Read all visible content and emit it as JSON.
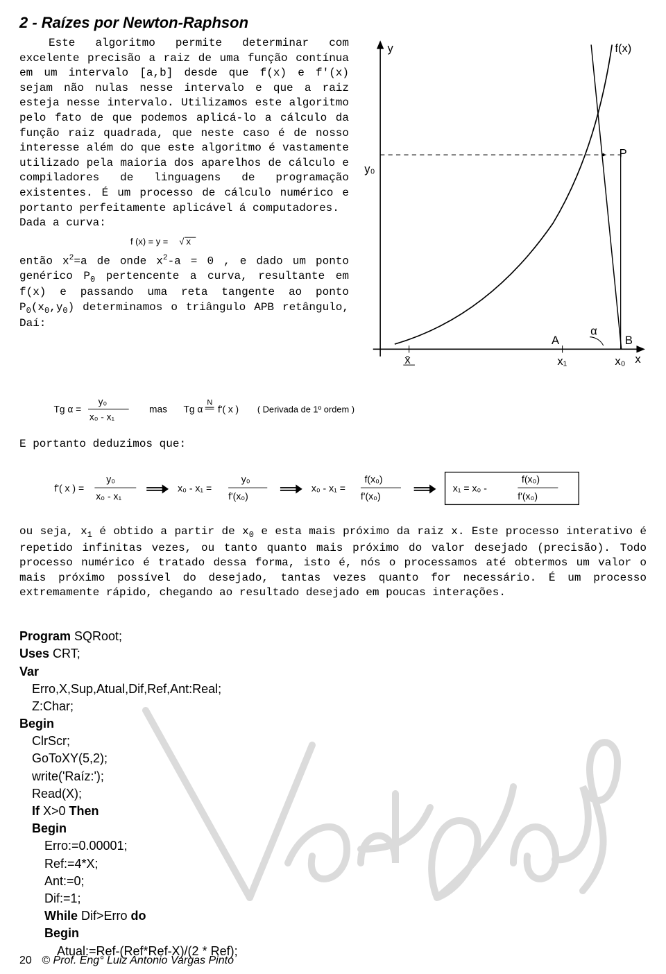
{
  "title": "2 - Raízes por Newton-Raphson",
  "p1": "Este algoritmo permite determinar com excelente precisão a raiz de uma função contínua em um intervalo [a,b] desde que f(x) e f'(x) sejam não nulas nesse intervalo e que a raiz esteja nesse intervalo. Utilizamos este algoritmo pelo fato de que podemos aplicá-lo a cálculo da função raiz quadrada, que neste caso é de nosso interesse além do que este algoritmo é vastamente utilizado pela maioria dos aparelhos de cálculo e compiladores de linguagens de programação existentes. É um processo de cálculo numérico e portanto perfeitamente aplicável á computadores.",
  "given_curve": "Dada a curva:",
  "formula_fx": "f(x) = y = √x",
  "p2_html": "então x<sup>2</sup>=a de onde x<sup>2</sup>-a = 0 , e dado um ponto genérico P<sub>0</sub> pertencente a curva, resultante em f(x) e passando uma reta tangente ao ponto P<sub>0</sub>(x<sub>0</sub>,y<sub>0</sub>) determinamos o triângulo APB retângulo, Daí:",
  "eq_tan": {
    "left_label": "Tg α =",
    "numerator1": "y₀",
    "denominator1": "x₀ - x₁",
    "mas": "mas",
    "tg2": "Tg α",
    "eq_label": "=",
    "n_over": "N",
    "fprime": "f'( x )",
    "paren": "( Derivada de 1º ordem )"
  },
  "p3": "E portanto deduzimos que:",
  "eq_chain": {
    "lhs": "f'( x ) =",
    "n1": "y₀",
    "d1": "x₀ - x₁",
    "mid1": "x₀ - x₁ =",
    "n2": "y₀",
    "d2": "f'(x₀)",
    "mid2": "x₀ - x₁ =",
    "n3": "f(x₀)",
    "d3": "f'(x₀)",
    "final_lhs": "x₁ = x₀ -",
    "n4": "f(x₀)",
    "d4": "f'(x₀)"
  },
  "p4_html": "ou seja, x<sub>1</sub> é obtido a partir de x<sub>0</sub> e esta mais próximo da raiz x. Este processo interativo é repetido infinitas vezes, ou tanto quanto mais próximo do valor desejado (precisão). Todo processo numérico é tratado dessa forma, isto é, nós o processamos até obtermos um valor o mais próximo possível do desejado, tantas vezes quanto for necessário. É um processo extremamente rápido, chegando ao resultado desejado em poucas interações.",
  "code": {
    "l1_kw": "Program ",
    "l1": "SQRoot;",
    "l2_kw": "Uses ",
    "l2": "CRT;",
    "l3_kw": "Var",
    "l4": "Erro,X,Sup,Atual,Dif,Ref,Ant:Real;",
    "l5": "Z:Char;",
    "l6_kw": "Begin",
    "l7": "ClrScr;",
    "l8": "GoToXY(5,2);",
    "l9": "write('Raíz:');",
    "l10": "Read(X);",
    "l11_kw1": "If ",
    "l11": "X>0 ",
    "l11_kw2": "Then",
    "l12_kw": "Begin",
    "l13": "Erro:=0.00001;",
    "l14": "Ref:=4*X;",
    "l15": "Ant:=0;",
    "l16": "Dif:=1;",
    "l17_kw1": "While ",
    "l17": "Dif>Erro ",
    "l17_kw2": "do",
    "l18_kw": "Begin",
    "l19": "Atual:=Ref-(Ref*Ref-X)/(2 * Ref);"
  },
  "graph": {
    "labels": {
      "y": "y",
      "x": "x",
      "fx": "f(x)",
      "P": "P",
      "y0": "y₀",
      "A": "A",
      "B": "B",
      "alpha": "α",
      "xbar": "x̄",
      "x1": "x₁",
      "x0": "x₀"
    },
    "colors": {
      "axis": "#000000",
      "curve": "#000000",
      "tangent": "#000000",
      "dash": "#000000"
    }
  },
  "footer": {
    "page": "20",
    "copyright": "© Prof. Eng° Luiz Antonio Vargas Pinto"
  },
  "watermark_color": "#bfbfbf"
}
